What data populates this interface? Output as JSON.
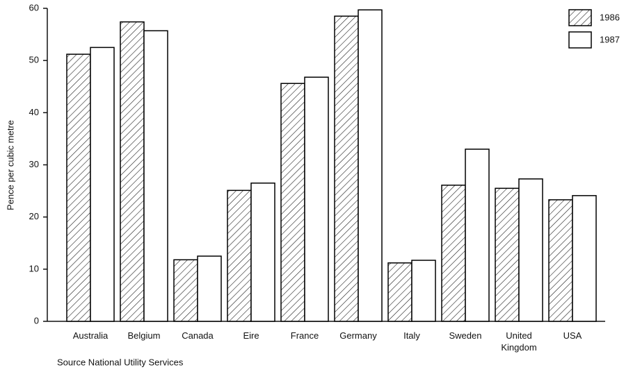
{
  "chart_data": {
    "type": "bar",
    "y_label": "Pence per cubic metre",
    "source": "Source National Utility Services",
    "categories": [
      "Australia",
      "Belgium",
      "Canada",
      "Eire",
      "France",
      "Germany",
      "Italy",
      "Sweden",
      "United Kingdom",
      "USA"
    ],
    "series": [
      {
        "name": "1986",
        "color": "#000000",
        "hatch": true,
        "values": [
          51.2,
          57.4,
          11.8,
          25.1,
          45.6,
          58.5,
          11.2,
          26.1,
          25.5,
          23.3
        ]
      },
      {
        "name": "1987",
        "color": "#000000",
        "hatch": false,
        "values": [
          52.5,
          55.7,
          12.5,
          26.5,
          46.8,
          59.7,
          11.7,
          33.0,
          27.3,
          24.1
        ]
      }
    ],
    "ylim": [
      0,
      60
    ],
    "yticks": [
      0,
      10,
      20,
      30,
      40,
      50,
      60
    ],
    "grid": false,
    "legend": "top-right"
  }
}
